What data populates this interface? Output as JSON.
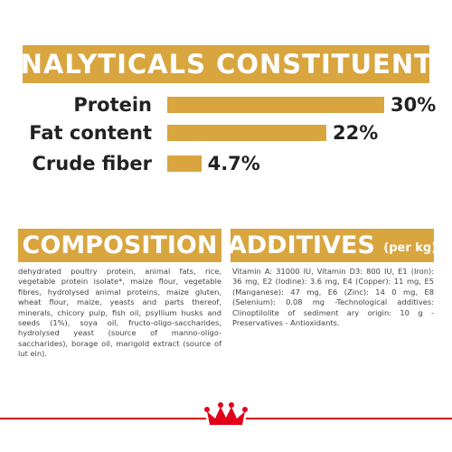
{
  "title": "ANALYTICALS CONSTITUENTS",
  "constituents": [
    {
      "label": "Protein",
      "value": 30,
      "value_label": "30%"
    },
    {
      "label": "Fat content",
      "value": 22,
      "value_label": "22%"
    },
    {
      "label": "Crude fiber",
      "value": 4.7,
      "value_label": "4.7%"
    }
  ],
  "composition": {
    "title": "COMPOSITION",
    "text": "dehydrated poultry protein, animal fats, rice, vegetable protein isolate*, maize flour, vegetable fibres, hydrolysed animal proteins, maize gluten, wheat flour, maize, yeasts and parts thereof, minerals, chicory pulp, fish oil, psyllium husks and seeds (1%), soya oil, fructo-oligo-saccharides, hydrolysed yeast (source of manno-oligo-saccharides), borage oil, marigold extract (source of lut ein)."
  },
  "additives": {
    "title": "ADDITIVES",
    "subtitle": "(per kg)",
    "text": "Vitamin A: 31000 IU, Vitamin D3: 800 IU, E1 (Iron): 36 mg, E2 (Iodine): 3.6 mg, E4 (Copper): 11 mg, E5 (Manganese): 47 mg, E6 (Zinc): 14 0 mg, E8 (Selenium): 0.08 mg -Technological additives: Clinoptilolite of sediment ary origin: 10 g - Preservatives - Antioxidants."
  }
}
